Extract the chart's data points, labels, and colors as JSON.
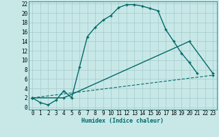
{
  "xlabel": "Humidex (Indice chaleur)",
  "bg_color": "#c8e8e8",
  "grid_color": "#a8cece",
  "line_color": "#006868",
  "xlim": [
    -0.5,
    23.5
  ],
  "ylim": [
    -0.5,
    22.5
  ],
  "xticks": [
    0,
    1,
    2,
    3,
    4,
    5,
    6,
    7,
    8,
    9,
    10,
    11,
    12,
    13,
    14,
    15,
    16,
    17,
    18,
    19,
    20,
    21,
    22,
    23
  ],
  "yticks": [
    0,
    2,
    4,
    6,
    8,
    10,
    12,
    14,
    16,
    18,
    20,
    22
  ],
  "series1_x": [
    0,
    1,
    2,
    3,
    4,
    5,
    6,
    7,
    8,
    9,
    10,
    11,
    12,
    13,
    14,
    15,
    16,
    17,
    18,
    19,
    20,
    21
  ],
  "series1_y": [
    2,
    1,
    0.5,
    1.5,
    3.5,
    2.0,
    8.5,
    15,
    17,
    18.5,
    19.5,
    21.2,
    21.8,
    21.8,
    21.5,
    21.0,
    20.5,
    16.5,
    14,
    11.5,
    9.5,
    7.2
  ],
  "series2_x": [
    0,
    4,
    20,
    23
  ],
  "series2_y": [
    2,
    2,
    14,
    7.2
  ],
  "series3_x": [
    0,
    23
  ],
  "series3_y": [
    2,
    6.8
  ]
}
